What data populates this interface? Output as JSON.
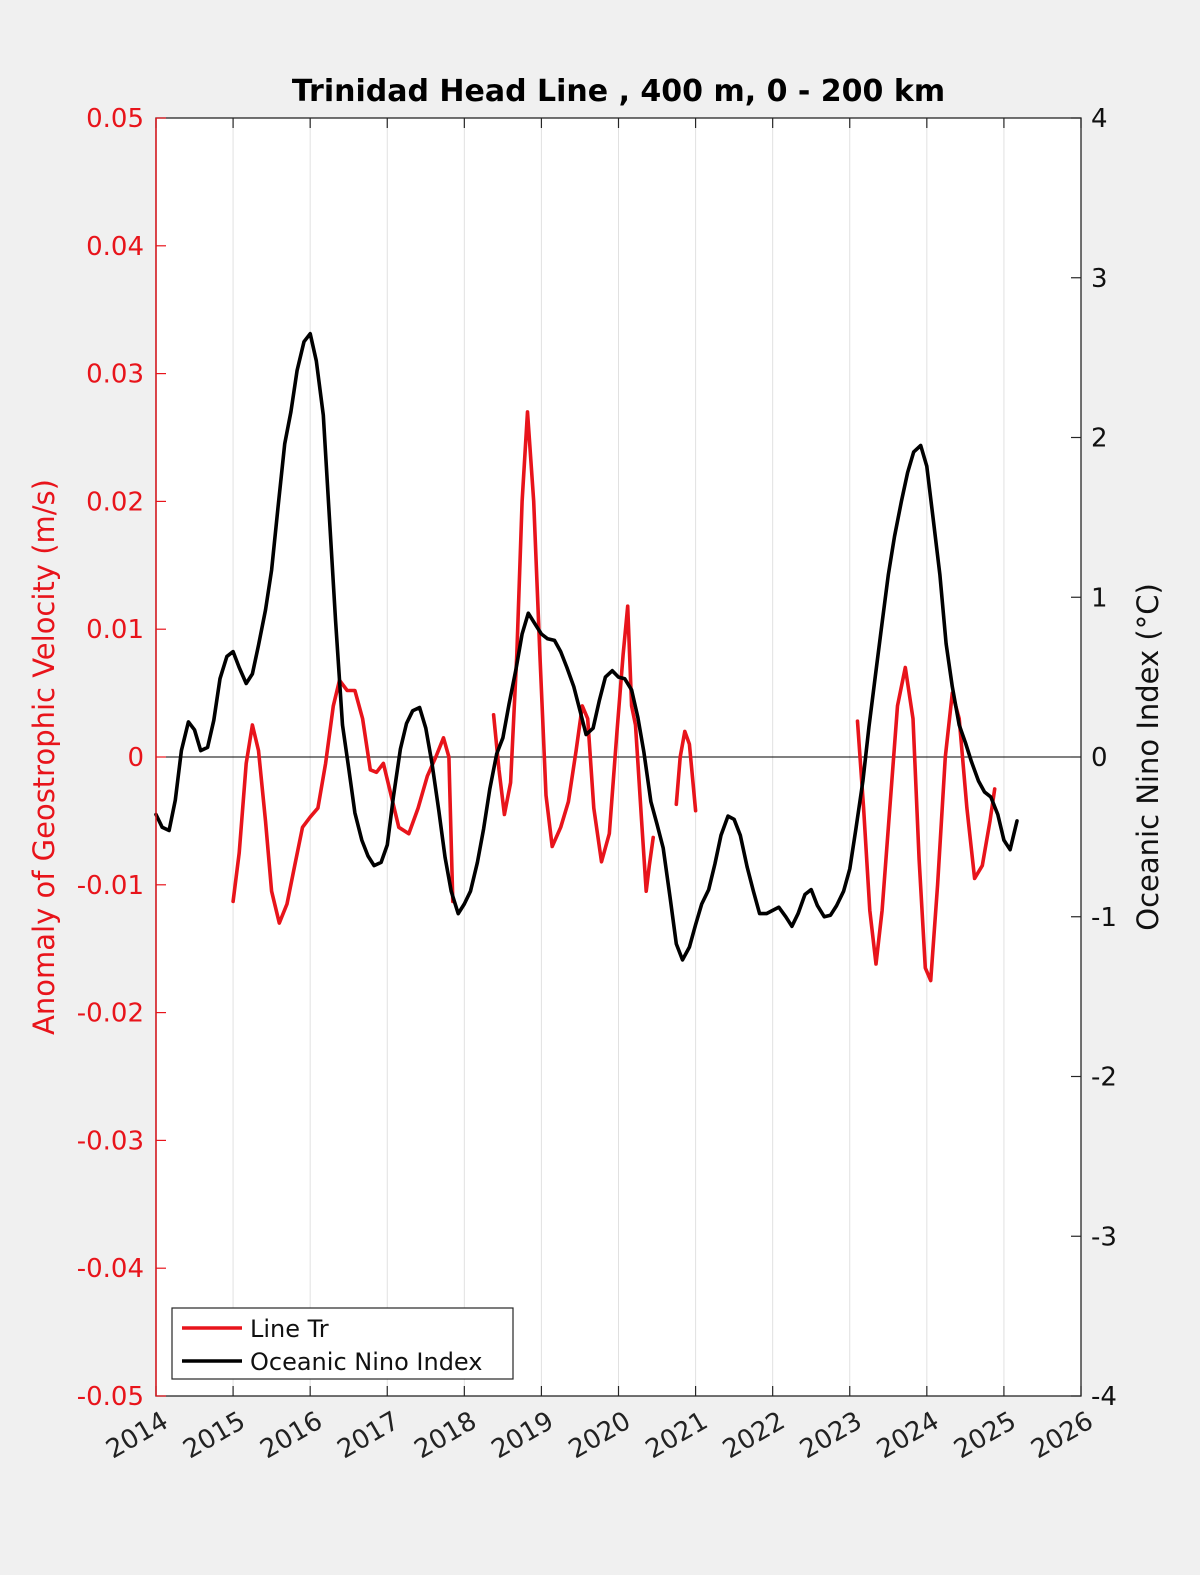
{
  "chart_data": {
    "type": "line",
    "title": "Trinidad Head Line , 400 m, 0 - 200 km",
    "xlabel": "",
    "ylabel_left": "Anomaly of Geostrophic Velocity (m/s)",
    "ylabel_right": "Oceanic Nino Index (°C)",
    "xlim": [
      2014,
      2026
    ],
    "ylim_left": [
      -0.05,
      0.05
    ],
    "ylim_right": [
      -4,
      4
    ],
    "x_ticks": [
      "2014",
      "2015",
      "2016",
      "2017",
      "2018",
      "2019",
      "2020",
      "2021",
      "2022",
      "2023",
      "2024",
      "2025",
      "2026"
    ],
    "y_ticks_left": [
      "0.05",
      "0.04",
      "0.03",
      "0.02",
      "0.01",
      "0",
      "-0.01",
      "-0.02",
      "-0.03",
      "-0.04",
      "-0.05"
    ],
    "y_ticks_right": [
      "4",
      "3",
      "2",
      "1",
      "0",
      "-1",
      "-2",
      "-3",
      "-4"
    ],
    "grid": "vertical",
    "legend_position": "bottom-left",
    "colors": {
      "line_tr": "#e8141b",
      "oni": "#000000",
      "left_axis": "#e8141b",
      "right_axis": "#111111"
    },
    "series": [
      {
        "name": "Line Tr",
        "axis": "left",
        "color": "#e8141b",
        "segments": [
          [
            [
              2015.0,
              -0.0113
            ],
            [
              2015.08,
              -0.0075
            ],
            [
              2015.17,
              -0.0005
            ],
            [
              2015.25,
              0.0025
            ],
            [
              2015.33,
              0.0005
            ],
            [
              2015.42,
              -0.005
            ],
            [
              2015.5,
              -0.0105
            ],
            [
              2015.6,
              -0.013
            ],
            [
              2015.7,
              -0.0115
            ],
            [
              2015.8,
              -0.0085
            ],
            [
              2015.9,
              -0.0055
            ],
            [
              2016.0,
              -0.0047
            ],
            [
              2016.1,
              -0.004
            ],
            [
              2016.2,
              -0.0005
            ],
            [
              2016.3,
              0.004
            ],
            [
              2016.38,
              0.006
            ],
            [
              2016.48,
              0.0052
            ],
            [
              2016.58,
              0.0052
            ],
            [
              2016.68,
              0.003
            ],
            [
              2016.78,
              -0.001
            ],
            [
              2016.86,
              -0.0012
            ],
            [
              2016.95,
              -0.0005
            ],
            [
              2017.05,
              -0.003
            ],
            [
              2017.15,
              -0.0055
            ],
            [
              2017.28,
              -0.006
            ],
            [
              2017.4,
              -0.004
            ],
            [
              2017.52,
              -0.0015
            ],
            [
              2017.63,
              0.0
            ],
            [
              2017.73,
              0.0015
            ],
            [
              2017.8,
              0.0
            ],
            [
              2017.85,
              -0.0113
            ]
          ],
          [
            [
              2018.38,
              0.0033
            ],
            [
              2018.45,
              -0.001
            ],
            [
              2018.52,
              -0.0045
            ],
            [
              2018.6,
              -0.002
            ],
            [
              2018.68,
              0.008
            ],
            [
              2018.75,
              0.02
            ],
            [
              2018.82,
              0.027
            ],
            [
              2018.9,
              0.02
            ],
            [
              2018.98,
              0.008
            ],
            [
              2019.06,
              -0.003
            ],
            [
              2019.14,
              -0.007
            ],
            [
              2019.25,
              -0.0055
            ],
            [
              2019.35,
              -0.0035
            ],
            [
              2019.45,
              0.0005
            ],
            [
              2019.53,
              0.004
            ],
            [
              2019.6,
              0.003
            ],
            [
              2019.68,
              -0.004
            ],
            [
              2019.78,
              -0.0082
            ],
            [
              2019.88,
              -0.006
            ],
            [
              2019.98,
              0.002
            ],
            [
              2020.06,
              0.008
            ],
            [
              2020.12,
              0.0118
            ],
            [
              2020.17,
              0.004
            ],
            [
              2020.22,
              0.0025
            ],
            [
              2020.3,
              -0.005
            ],
            [
              2020.36,
              -0.0105
            ],
            [
              2020.4,
              -0.0085
            ],
            [
              2020.45,
              -0.0063
            ]
          ],
          [
            [
              2020.75,
              -0.0037
            ],
            [
              2020.8,
              0.0
            ],
            [
              2020.86,
              0.002
            ],
            [
              2020.92,
              0.001
            ],
            [
              2021.0,
              -0.0042
            ]
          ],
          [
            [
              2023.1,
              0.0028
            ],
            [
              2023.18,
              -0.004
            ],
            [
              2023.26,
              -0.012
            ],
            [
              2023.34,
              -0.0162
            ],
            [
              2023.42,
              -0.012
            ],
            [
              2023.52,
              -0.004
            ],
            [
              2023.62,
              0.004
            ],
            [
              2023.72,
              0.007
            ],
            [
              2023.82,
              0.003
            ],
            [
              2023.9,
              -0.008
            ],
            [
              2023.98,
              -0.0165
            ],
            [
              2024.05,
              -0.0175
            ],
            [
              2024.14,
              -0.01
            ],
            [
              2024.24,
              0.0
            ],
            [
              2024.33,
              0.005
            ],
            [
              2024.42,
              0.003
            ],
            [
              2024.52,
              -0.004
            ],
            [
              2024.62,
              -0.0095
            ],
            [
              2024.72,
              -0.0085
            ],
            [
              2024.82,
              -0.005
            ],
            [
              2024.88,
              -0.0025
            ]
          ]
        ]
      },
      {
        "name": "Oceanic Nino Index",
        "axis": "right",
        "color": "#000000",
        "segments": [
          [
            [
              2014.0,
              -0.36
            ],
            [
              2014.08,
              -0.44
            ],
            [
              2014.17,
              -0.46
            ],
            [
              2014.25,
              -0.27
            ],
            [
              2014.33,
              0.04
            ],
            [
              2014.42,
              0.22
            ],
            [
              2014.5,
              0.17
            ],
            [
              2014.58,
              0.04
            ],
            [
              2014.67,
              0.06
            ],
            [
              2014.75,
              0.23
            ],
            [
              2014.83,
              0.49
            ],
            [
              2014.92,
              0.63
            ],
            [
              2015.0,
              0.66
            ],
            [
              2015.08,
              0.56
            ],
            [
              2015.17,
              0.46
            ],
            [
              2015.25,
              0.52
            ],
            [
              2015.33,
              0.7
            ],
            [
              2015.42,
              0.92
            ],
            [
              2015.5,
              1.17
            ],
            [
              2015.58,
              1.55
            ],
            [
              2015.67,
              1.96
            ],
            [
              2015.75,
              2.16
            ],
            [
              2015.83,
              2.42
            ],
            [
              2015.92,
              2.6
            ],
            [
              2016.0,
              2.65
            ],
            [
              2016.08,
              2.48
            ],
            [
              2016.17,
              2.14
            ],
            [
              2016.25,
              1.5
            ],
            [
              2016.33,
              0.85
            ],
            [
              2016.42,
              0.2
            ],
            [
              2016.5,
              -0.07
            ],
            [
              2016.58,
              -0.35
            ],
            [
              2016.67,
              -0.52
            ],
            [
              2016.75,
              -0.62
            ],
            [
              2016.83,
              -0.68
            ],
            [
              2016.92,
              -0.66
            ],
            [
              2017.0,
              -0.55
            ],
            [
              2017.08,
              -0.25
            ],
            [
              2017.17,
              0.05
            ],
            [
              2017.25,
              0.21
            ],
            [
              2017.33,
              0.29
            ],
            [
              2017.42,
              0.31
            ],
            [
              2017.5,
              0.18
            ],
            [
              2017.58,
              -0.04
            ],
            [
              2017.67,
              -0.34
            ],
            [
              2017.75,
              -0.63
            ],
            [
              2017.83,
              -0.84
            ],
            [
              2017.92,
              -0.98
            ],
            [
              2018.0,
              -0.92
            ],
            [
              2018.08,
              -0.84
            ],
            [
              2018.17,
              -0.66
            ],
            [
              2018.25,
              -0.45
            ],
            [
              2018.33,
              -0.2
            ],
            [
              2018.42,
              0.02
            ],
            [
              2018.5,
              0.12
            ],
            [
              2018.58,
              0.33
            ],
            [
              2018.67,
              0.55
            ],
            [
              2018.75,
              0.77
            ],
            [
              2018.83,
              0.9
            ],
            [
              2018.92,
              0.83
            ],
            [
              2019.0,
              0.77
            ],
            [
              2019.08,
              0.74
            ],
            [
              2019.17,
              0.73
            ],
            [
              2019.25,
              0.66
            ],
            [
              2019.33,
              0.56
            ],
            [
              2019.42,
              0.44
            ],
            [
              2019.5,
              0.29
            ],
            [
              2019.58,
              0.14
            ],
            [
              2019.67,
              0.18
            ],
            [
              2019.75,
              0.35
            ],
            [
              2019.83,
              0.5
            ],
            [
              2019.92,
              0.54
            ],
            [
              2020.0,
              0.5
            ],
            [
              2020.08,
              0.49
            ],
            [
              2020.17,
              0.42
            ],
            [
              2020.25,
              0.25
            ],
            [
              2020.33,
              0.03
            ],
            [
              2020.42,
              -0.28
            ],
            [
              2020.5,
              -0.42
            ],
            [
              2020.58,
              -0.57
            ],
            [
              2020.67,
              -0.88
            ],
            [
              2020.75,
              -1.17
            ],
            [
              2020.83,
              -1.27
            ],
            [
              2020.92,
              -1.19
            ],
            [
              2021.0,
              -1.05
            ],
            [
              2021.08,
              -0.92
            ],
            [
              2021.17,
              -0.83
            ],
            [
              2021.25,
              -0.67
            ],
            [
              2021.33,
              -0.49
            ],
            [
              2021.42,
              -0.37
            ],
            [
              2021.5,
              -0.39
            ],
            [
              2021.58,
              -0.49
            ],
            [
              2021.67,
              -0.69
            ],
            [
              2021.75,
              -0.84
            ],
            [
              2021.83,
              -0.98
            ],
            [
              2021.92,
              -0.98
            ],
            [
              2022.0,
              -0.96
            ],
            [
              2022.08,
              -0.94
            ],
            [
              2022.17,
              -1.0
            ],
            [
              2022.25,
              -1.06
            ],
            [
              2022.33,
              -0.98
            ],
            [
              2022.42,
              -0.86
            ],
            [
              2022.5,
              -0.83
            ],
            [
              2022.58,
              -0.93
            ],
            [
              2022.67,
              -1.0
            ],
            [
              2022.75,
              -0.99
            ],
            [
              2022.83,
              -0.93
            ],
            [
              2022.92,
              -0.84
            ],
            [
              2023.0,
              -0.7
            ],
            [
              2023.08,
              -0.45
            ],
            [
              2023.17,
              -0.15
            ],
            [
              2023.25,
              0.19
            ],
            [
              2023.33,
              0.5
            ],
            [
              2023.42,
              0.84
            ],
            [
              2023.5,
              1.14
            ],
            [
              2023.58,
              1.38
            ],
            [
              2023.67,
              1.6
            ],
            [
              2023.75,
              1.78
            ],
            [
              2023.83,
              1.91
            ],
            [
              2023.92,
              1.95
            ],
            [
              2024.0,
              1.82
            ],
            [
              2024.08,
              1.5
            ],
            [
              2024.17,
              1.14
            ],
            [
              2024.25,
              0.71
            ],
            [
              2024.33,
              0.44
            ],
            [
              2024.42,
              0.2
            ],
            [
              2024.5,
              0.09
            ],
            [
              2024.58,
              -0.03
            ],
            [
              2024.67,
              -0.15
            ],
            [
              2024.75,
              -0.22
            ],
            [
              2024.83,
              -0.25
            ],
            [
              2024.92,
              -0.36
            ],
            [
              2025.0,
              -0.52
            ],
            [
              2025.08,
              -0.58
            ],
            [
              2025.17,
              -0.4
            ]
          ]
        ]
      }
    ]
  },
  "legend": {
    "items": [
      "Line Tr",
      "Oceanic Nino Index"
    ]
  }
}
